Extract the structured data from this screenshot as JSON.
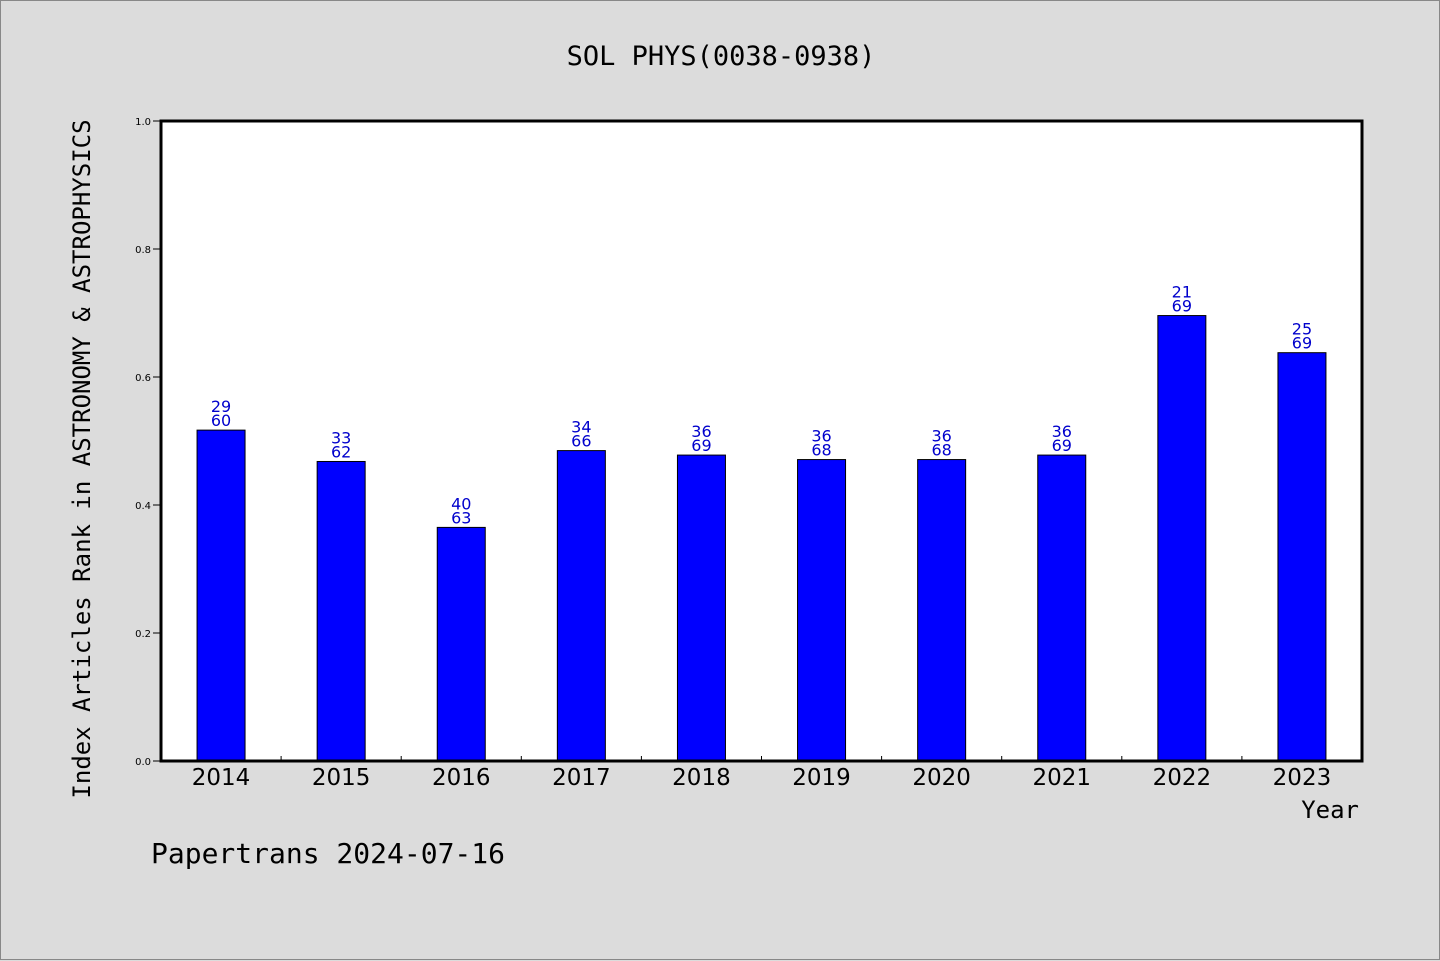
{
  "chart_data": {
    "type": "bar",
    "title": "SOL PHYS(0038-0938)",
    "xlabel": "Year",
    "ylabel": "Index Articles Rank in ASTRONOMY & ASTROPHYSICS",
    "ylim": [
      0,
      1.0
    ],
    "yticks": [
      "0.0",
      "0.2",
      "0.4",
      "0.6",
      "0.8",
      "1.0"
    ],
    "categories": [
      "2014",
      "2015",
      "2016",
      "2017",
      "2018",
      "2019",
      "2020",
      "2021",
      "2022",
      "2023"
    ],
    "values": [
      0.517,
      0.468,
      0.365,
      0.485,
      0.478,
      0.471,
      0.471,
      0.478,
      0.696,
      0.638
    ],
    "rank": [
      "29",
      "33",
      "40",
      "34",
      "36",
      "36",
      "36",
      "36",
      "21",
      "25"
    ],
    "total": [
      "60",
      "62",
      "63",
      "66",
      "69",
      "68",
      "68",
      "69",
      "69",
      "69"
    ],
    "bar_color": "#0000ff",
    "label_color": "#0000cc",
    "grid": false,
    "legend": "none"
  },
  "footer": "Papertrans 2024-07-16"
}
